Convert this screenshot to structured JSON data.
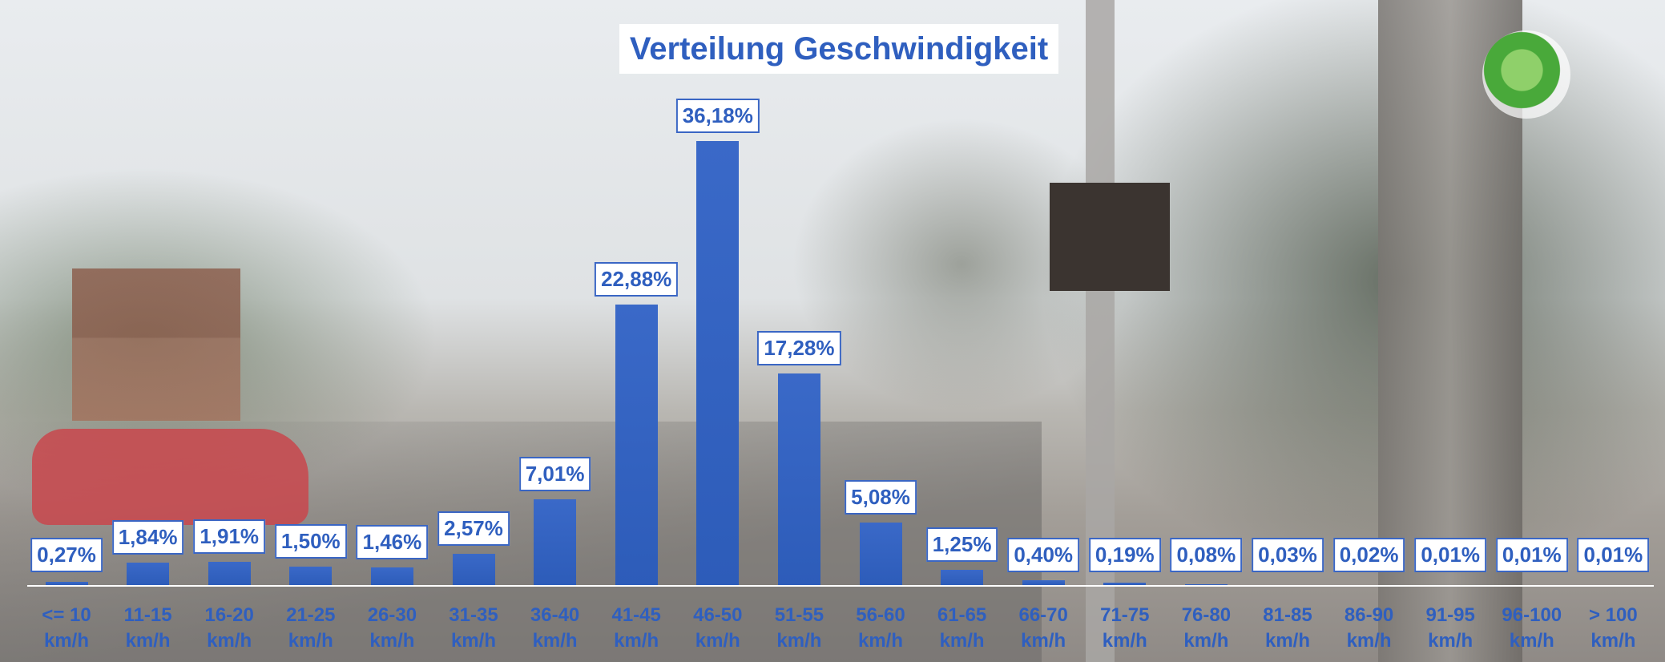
{
  "chart_data": {
    "type": "bar",
    "title": "Verteilung Geschwindigkeit",
    "categories": [
      "<= 10 km/h",
      "11-15 km/h",
      "16-20 km/h",
      "21-25 km/h",
      "26-30 km/h",
      "31-35 km/h",
      "36-40 km/h",
      "41-45 km/h",
      "46-50 km/h",
      "51-55 km/h",
      "56-60 km/h",
      "61-65 km/h",
      "66-70 km/h",
      "71-75 km/h",
      "76-80 km/h",
      "81-85 km/h",
      "86-90 km/h",
      "91-95 km/h",
      "96-100 km/h",
      "> 100 km/h"
    ],
    "values": [
      0.27,
      1.84,
      1.91,
      1.5,
      1.46,
      2.57,
      7.01,
      22.88,
      36.18,
      17.28,
      5.08,
      1.25,
      0.4,
      0.19,
      0.08,
      0.03,
      0.02,
      0.01,
      0.01,
      0.01
    ],
    "value_labels": [
      "0,27%",
      "1,84%",
      "1,91%",
      "1,50%",
      "1,46%",
      "2,57%",
      "7,01%",
      "22,88%",
      "36,18%",
      "17,28%",
      "5,08%",
      "1,25%",
      "0,40%",
      "0,19%",
      "0,08%",
      "0,03%",
      "0,02%",
      "0,01%",
      "0,01%",
      "0,01%"
    ],
    "color": "#3a69c8"
  }
}
